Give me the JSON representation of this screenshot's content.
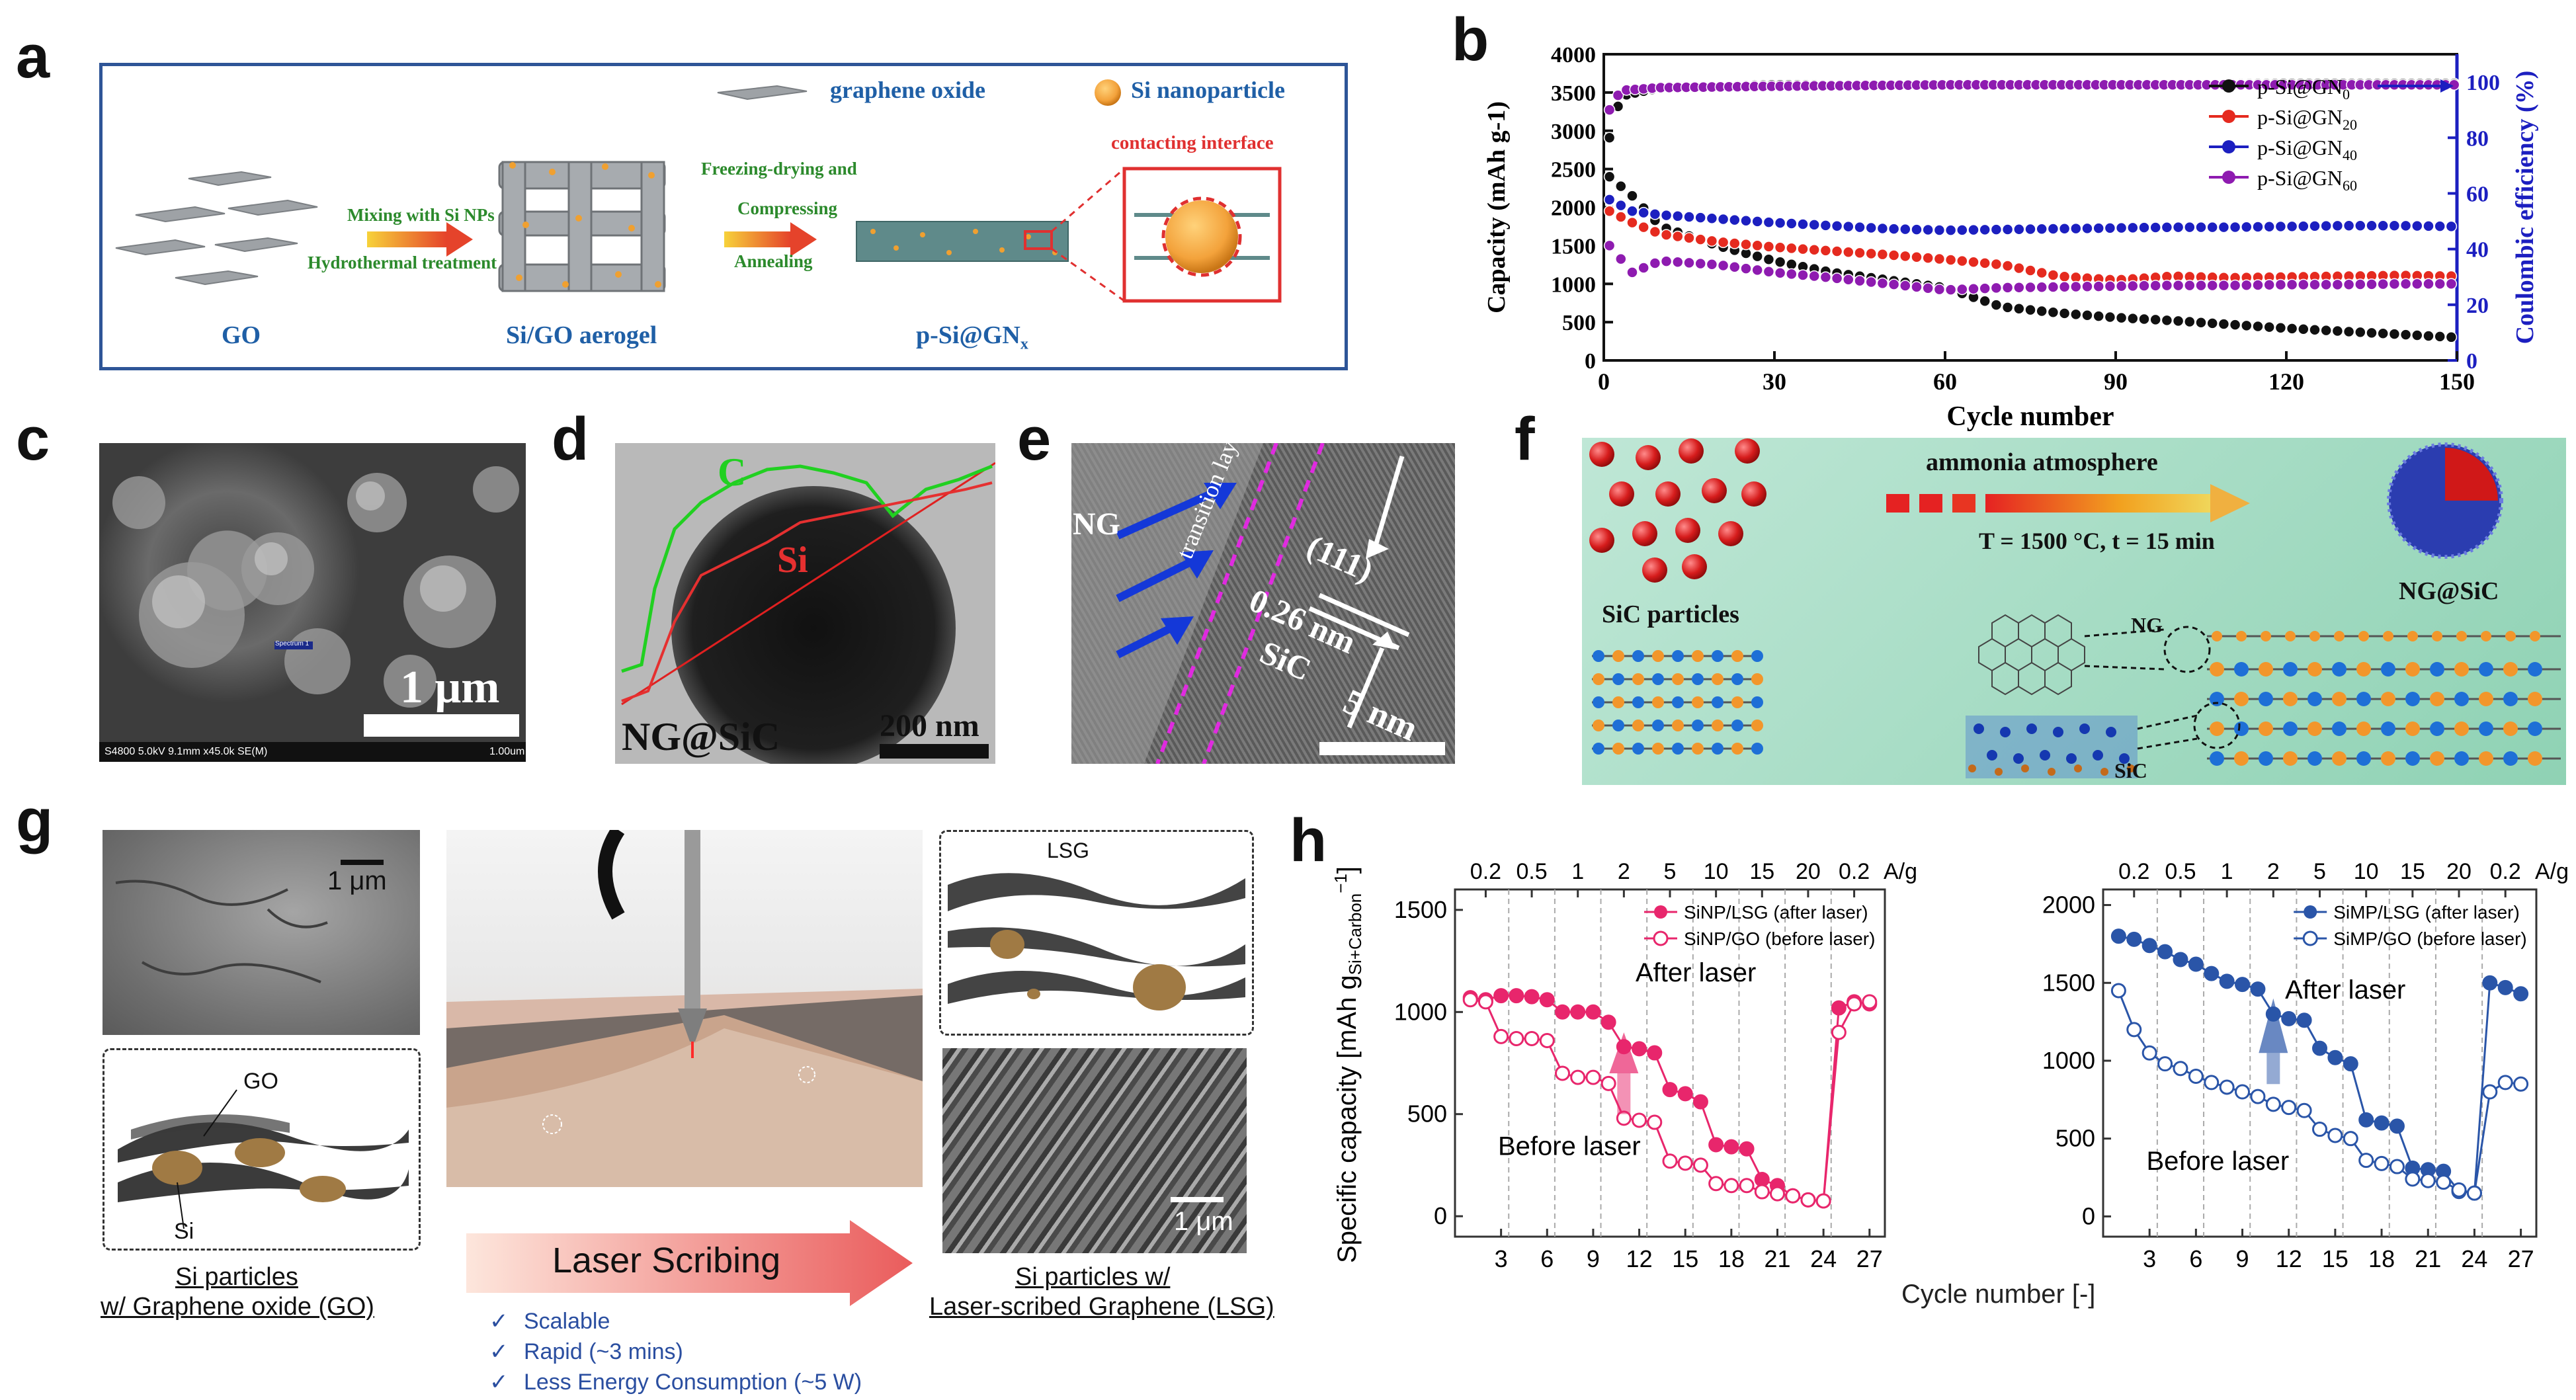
{
  "panels": {
    "a": {
      "letter": "a",
      "legend_go": "graphene oxide",
      "legend_si": "Si nanoparticle",
      "step1_top": "Mixing with Si NPs",
      "step1_bottom": "Hydrothermal treatment",
      "step2_top1": "Freezing-drying and",
      "step2_top2": "Compressing",
      "step2_bottom": "Annealing",
      "interface_label": "contacting interface",
      "label_go": "GO",
      "label_aerogel": "Si/GO aerogel",
      "label_product": "p-Si@GN",
      "label_product_sub": "x",
      "colors": {
        "border": "#2e5597",
        "green_text": "#2c8a2c",
        "blue_text": "#1f5fa6",
        "red": "#e03030"
      }
    },
    "b": {
      "letter": "b",
      "legend": [
        {
          "name": "p-Si@GN",
          "sub": "0",
          "color": "#111111"
        },
        {
          "name": "p-Si@GN",
          "sub": "20",
          "color": "#e52a1f"
        },
        {
          "name": "p-Si@GN",
          "sub": "40",
          "color": "#1c1fc0"
        },
        {
          "name": "p-Si@GN",
          "sub": "60",
          "color": "#8e1bb0"
        }
      ]
    },
    "c": {
      "letter": "c",
      "scale": "1 μm",
      "spectrum": "Spectrum 1",
      "footer_left": "S4800 5.0kV 9.1mm x45.0k SE(M)",
      "footer_right": "1.00um"
    },
    "d": {
      "letter": "d",
      "label_c": "C",
      "label_si": "Si",
      "label_bottom": "NG@SiC",
      "scale": "200 nm"
    },
    "e": {
      "letter": "e",
      "label_ng": "NG",
      "label_transition": "transition layer",
      "label_plane": "(111)",
      "label_spacing": "0.26 nm",
      "label_sic": "SiC",
      "scale": "5 nm"
    },
    "f": {
      "letter": "f",
      "atmosphere": "ammonia atmosphere",
      "conditions": "T = 1500 °C, t = 15 min",
      "label_particles": "SiC particles",
      "label_product": "NG@SiC",
      "label_ng": "NG",
      "label_sic": "SiC"
    },
    "g": {
      "letter": "g",
      "scale_top": "1 μm",
      "scale_bottom": "1 μm",
      "label_go": "GO",
      "label_si": "Si",
      "label_lsg": "LSG",
      "arrow_text": "Laser Scribing",
      "left_caption1": "Si particles",
      "left_caption2": "w/ Graphene oxide (GO)",
      "right_caption1": "Si particles w/",
      "right_caption2": "Laser-scribed Graphene (LSG)",
      "bullets": [
        "Scalable",
        "Rapid (~3 mins)",
        "Less Energy Consumption (~5 W)"
      ]
    },
    "h": {
      "letter": "h",
      "ylabel": "Specific capacity [mAh g",
      "ylabel_sub": "Si+Carbon",
      "ylabel_sup": "−1",
      "ylabel_end": "]",
      "xlabel": "Cycle number [-]",
      "rate_labels": [
        "0.2",
        "0.5",
        "1",
        "2",
        "5",
        "10",
        "15",
        "20",
        "0.2"
      ],
      "rate_unit": "A/g",
      "left": {
        "legend_after": "SiNP/LSG (after laser)",
        "legend_before": "SiNP/GO (before laser)",
        "ann_after": "After laser",
        "ann_before": "Before laser",
        "color": "#e8266c"
      },
      "right": {
        "legend_after": "SiMP/LSG (after laser)",
        "legend_before": "SiMP/GO (before laser)",
        "ann_after": "After laser",
        "ann_before": "Before laser",
        "color": "#2a55a8"
      }
    }
  },
  "chart_data": [
    {
      "id": "b",
      "type": "scatter",
      "xlabel": "Cycle number",
      "ylabel": "Capacity (mAh g-1)",
      "y2label": "Coulombic efficiency (%)",
      "xlim": [
        0,
        150
      ],
      "ylim": [
        0,
        4000
      ],
      "y2lim": [
        0,
        110
      ],
      "xticks": [
        0,
        30,
        60,
        90,
        120,
        150
      ],
      "yticks": [
        0,
        500,
        1000,
        1500,
        2000,
        2500,
        3000,
        3500,
        4000
      ],
      "y2ticks": [
        0,
        20,
        40,
        60,
        80,
        100
      ],
      "series": [
        {
          "name": "p-Si@GN0",
          "color": "#111111",
          "x": [
            1,
            5,
            10,
            20,
            30,
            40,
            50,
            60,
            70,
            80,
            90,
            100,
            110,
            120,
            130,
            140,
            150
          ],
          "values": [
            2400,
            2150,
            1750,
            1500,
            1300,
            1150,
            1050,
            950,
            700,
            620,
            560,
            520,
            470,
            420,
            380,
            340,
            300
          ]
        },
        {
          "name": "p-Si@GN20",
          "color": "#e52a1f",
          "x": [
            1,
            5,
            10,
            20,
            30,
            40,
            50,
            60,
            70,
            80,
            90,
            100,
            110,
            120,
            130,
            140,
            150
          ],
          "values": [
            1950,
            1800,
            1650,
            1550,
            1480,
            1430,
            1380,
            1320,
            1250,
            1100,
            1050,
            1100,
            1080,
            1090,
            1100,
            1110,
            1100
          ]
        },
        {
          "name": "p-Si@GN40",
          "color": "#1c1fc0",
          "x": [
            1,
            5,
            10,
            20,
            30,
            40,
            50,
            60,
            70,
            80,
            90,
            100,
            110,
            120,
            130,
            140,
            150
          ],
          "values": [
            2100,
            1950,
            1900,
            1850,
            1800,
            1760,
            1720,
            1700,
            1710,
            1720,
            1730,
            1740,
            1740,
            1750,
            1760,
            1760,
            1750
          ]
        },
        {
          "name": "p-Si@GN60",
          "color": "#8e1bb0",
          "x": [
            1,
            5,
            10,
            20,
            30,
            40,
            50,
            60,
            70,
            80,
            90,
            100,
            110,
            120,
            130,
            140,
            150
          ],
          "values": [
            1500,
            1150,
            1300,
            1250,
            1150,
            1080,
            1000,
            920,
            950,
            960,
            970,
            980,
            980,
            990,
            990,
            1000,
            1000
          ]
        },
        {
          "name": "CE p-Si@GN0",
          "color": "#111111",
          "axis": "right",
          "x": [
            1,
            3,
            10,
            30,
            60,
            90,
            120,
            150
          ],
          "values": [
            80,
            95,
            98,
            99,
            99,
            99,
            99.5,
            99.5
          ]
        },
        {
          "name": "CE p-Si@GN60",
          "color": "#8e1bb0",
          "axis": "right",
          "x": [
            1,
            3,
            10,
            30,
            60,
            90,
            120,
            150
          ],
          "values": [
            90,
            97,
            98,
            98.5,
            99,
            99,
            99,
            99
          ]
        }
      ]
    },
    {
      "id": "h-left",
      "type": "line",
      "xlabel": "Cycle number [-]",
      "ylabel": "Specific capacity [mAh g Si+Carbon −1]",
      "xlim": [
        0,
        28
      ],
      "ylim": [
        -100,
        1600
      ],
      "xticks": [
        3,
        6,
        9,
        12,
        15,
        18,
        21,
        24,
        27
      ],
      "yticks": [
        0,
        500,
        1000,
        1500
      ],
      "series": [
        {
          "name": "SiNP/LSG (after laser)",
          "x": [
            1,
            2,
            3,
            4,
            5,
            6,
            7,
            8,
            9,
            10,
            11,
            12,
            13,
            14,
            15,
            16,
            17,
            18,
            19,
            20,
            21,
            22,
            23,
            24,
            25,
            26,
            27
          ],
          "values": [
            1070,
            1060,
            1080,
            1080,
            1075,
            1060,
            1000,
            1000,
            1000,
            950,
            830,
            820,
            800,
            620,
            600,
            560,
            350,
            340,
            330,
            180,
            150,
            100,
            80,
            75,
            1020,
            1050,
            1040
          ],
          "filled": true
        },
        {
          "name": "SiNP/GO (before laser)",
          "x": [
            1,
            2,
            3,
            4,
            5,
            6,
            7,
            8,
            9,
            10,
            11,
            12,
            13,
            14,
            15,
            16,
            17,
            18,
            19,
            20,
            21,
            22,
            23,
            24,
            25,
            26,
            27
          ],
          "values": [
            1060,
            1050,
            880,
            870,
            870,
            860,
            700,
            680,
            680,
            650,
            480,
            470,
            460,
            270,
            260,
            250,
            160,
            150,
            150,
            120,
            110,
            100,
            80,
            75,
            900,
            1040,
            1050
          ],
          "filled": false
        }
      ]
    },
    {
      "id": "h-right",
      "type": "line",
      "xlabel": "Cycle number [-]",
      "xlim": [
        0,
        28
      ],
      "ylim": [
        -130,
        2100
      ],
      "xticks": [
        3,
        6,
        9,
        12,
        15,
        18,
        21,
        24,
        27
      ],
      "yticks": [
        0,
        500,
        1000,
        1500,
        2000
      ],
      "series": [
        {
          "name": "SiMP/LSG (after laser)",
          "x": [
            1,
            2,
            3,
            4,
            5,
            6,
            7,
            8,
            9,
            10,
            11,
            12,
            13,
            14,
            15,
            16,
            17,
            18,
            19,
            20,
            21,
            22,
            23,
            24,
            25,
            26,
            27
          ],
          "values": [
            1800,
            1780,
            1740,
            1700,
            1650,
            1620,
            1560,
            1510,
            1490,
            1460,
            1300,
            1270,
            1260,
            1080,
            1020,
            980,
            620,
            600,
            580,
            310,
            300,
            290,
            160,
            150,
            1500,
            1470,
            1430
          ],
          "filled": true
        },
        {
          "name": "SiMP/GO (before laser)",
          "x": [
            1,
            2,
            3,
            4,
            5,
            6,
            7,
            8,
            9,
            10,
            11,
            12,
            13,
            14,
            15,
            16,
            17,
            18,
            19,
            20,
            21,
            22,
            23,
            24,
            25,
            26,
            27
          ],
          "values": [
            1450,
            1200,
            1050,
            980,
            950,
            900,
            860,
            830,
            800,
            770,
            720,
            700,
            680,
            560,
            520,
            500,
            360,
            340,
            320,
            240,
            230,
            220,
            170,
            150,
            800,
            860,
            850
          ],
          "filled": false
        }
      ]
    }
  ]
}
